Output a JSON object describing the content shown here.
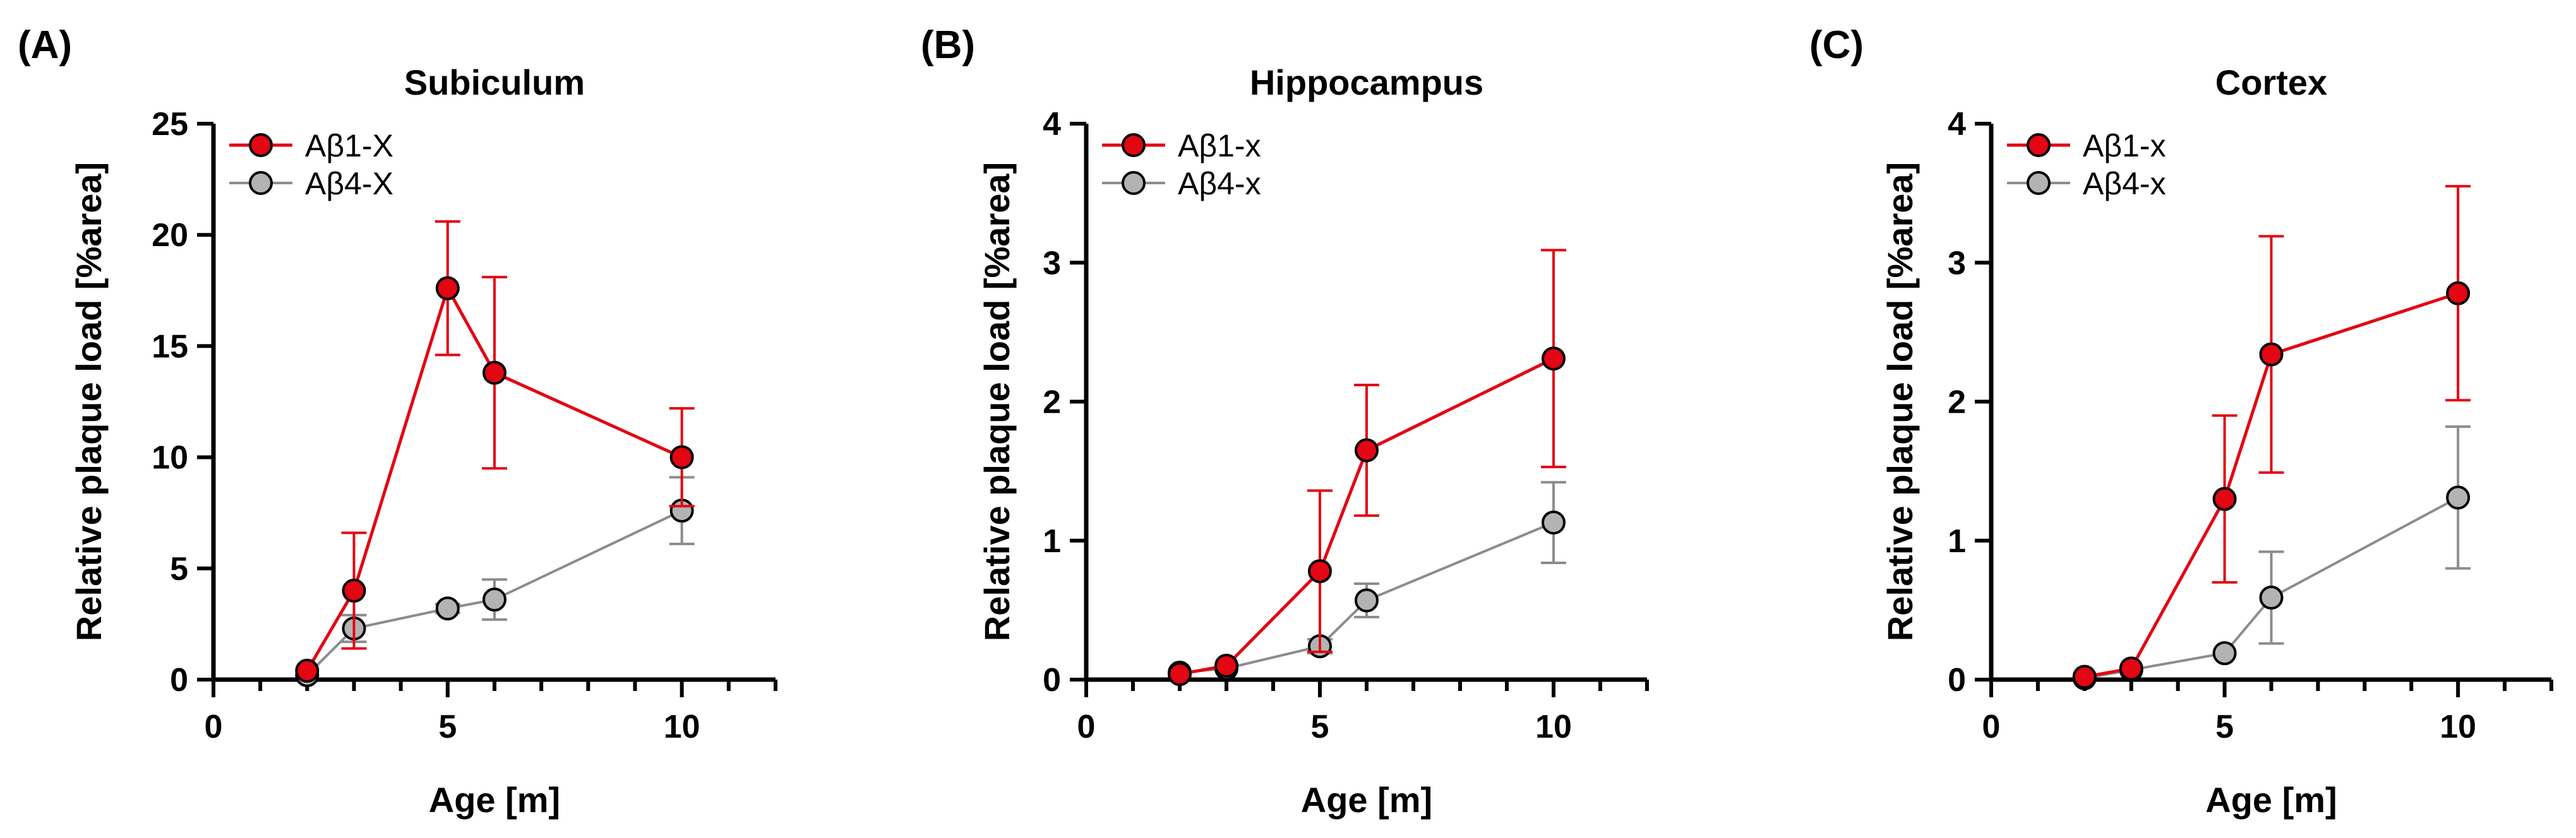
{
  "colors": {
    "red": "#e30613",
    "gray": "#8c8c8c",
    "marker_gray": "#b3b3b3",
    "axis": "#000000"
  },
  "chart_data": [
    {
      "type": "line",
      "panel_label": "(A)",
      "title": "Subiculum",
      "xlabel": "Age [m]",
      "ylabel": "Relative plaque load [%area]",
      "xlim": [
        0,
        12
      ],
      "ylim": [
        0,
        25
      ],
      "x_ticks": [
        "0",
        "5",
        "10"
      ],
      "y_ticks": [
        "0",
        "5",
        "10",
        "15",
        "20",
        "25"
      ],
      "y_tick_values": [
        0,
        5,
        10,
        15,
        20,
        25
      ],
      "legend_position": "top-left",
      "series": [
        {
          "name": "Aβ1-X",
          "color": "red",
          "x": [
            2,
            3,
            5,
            6,
            10
          ],
          "y": [
            0.4,
            4.0,
            17.6,
            13.8,
            10.0
          ],
          "err": [
            0.0,
            2.6,
            3.0,
            4.3,
            2.2
          ]
        },
        {
          "name": "Aβ4-X",
          "color": "gray",
          "x": [
            2,
            3,
            5,
            6,
            10
          ],
          "y": [
            0.2,
            2.3,
            3.2,
            3.6,
            7.6
          ],
          "err": [
            0.0,
            0.6,
            0.2,
            0.9,
            1.5
          ]
        }
      ]
    },
    {
      "type": "line",
      "panel_label": "(B)",
      "title": "Hippocampus",
      "xlabel": "Age [m]",
      "ylabel": "Relative plaque load [%area]",
      "xlim": [
        0,
        12
      ],
      "ylim": [
        0,
        4
      ],
      "x_ticks": [
        "0",
        "5",
        "10"
      ],
      "y_ticks": [
        "0",
        "1",
        "2",
        "3",
        "4"
      ],
      "y_tick_values": [
        0,
        1,
        2,
        3,
        4
      ],
      "legend_position": "top-left",
      "series": [
        {
          "name": "Aβ1-x",
          "color": "red",
          "x": [
            2,
            3,
            5,
            6,
            10
          ],
          "y": [
            0.04,
            0.1,
            0.78,
            1.65,
            2.31
          ],
          "err": [
            0.0,
            0.0,
            0.58,
            0.47,
            0.78
          ]
        },
        {
          "name": "Aβ4-x",
          "color": "gray",
          "x": [
            2,
            3,
            5,
            6,
            10
          ],
          "y": [
            0.05,
            0.08,
            0.24,
            0.57,
            1.13
          ],
          "err": [
            0.0,
            0.0,
            0.05,
            0.12,
            0.29
          ]
        }
      ]
    },
    {
      "type": "line",
      "panel_label": "(C)",
      "title": "Cortex",
      "xlabel": "Age [m]",
      "ylabel": "Relative plaque load [%area]",
      "xlim": [
        0,
        12
      ],
      "ylim": [
        0,
        4
      ],
      "x_ticks": [
        "0",
        "5",
        "10"
      ],
      "y_ticks": [
        "0",
        "1",
        "2",
        "3",
        "4"
      ],
      "y_tick_values": [
        0,
        1,
        2,
        3,
        4
      ],
      "legend_position": "top-left",
      "series": [
        {
          "name": "Aβ1-x",
          "color": "red",
          "x": [
            2,
            3,
            5,
            6,
            10
          ],
          "y": [
            0.02,
            0.08,
            1.3,
            2.34,
            2.78
          ],
          "err": [
            0.0,
            0.0,
            0.6,
            0.85,
            0.77
          ]
        },
        {
          "name": "Aβ4-x",
          "color": "gray",
          "x": [
            2,
            3,
            5,
            6,
            10
          ],
          "y": [
            0.01,
            0.07,
            0.19,
            0.59,
            1.31
          ],
          "err": [
            0.0,
            0.0,
            0.0,
            0.33,
            0.51
          ]
        }
      ]
    }
  ]
}
